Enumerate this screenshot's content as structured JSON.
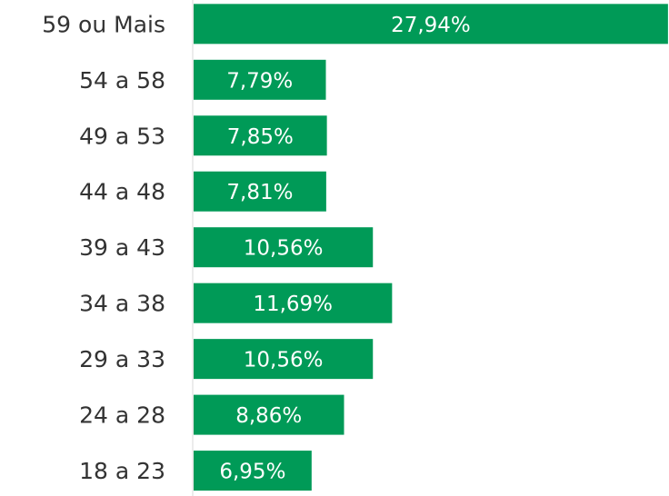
{
  "chart_data": {
    "type": "hbar",
    "categories": [
      "59 ou Mais",
      "54 a 58",
      "49 a 53",
      "44 a 48",
      "39 a 43",
      "34 a 38",
      "29 a 33",
      "24 a 28",
      "18 a 23"
    ],
    "values": [
      27.94,
      7.79,
      7.85,
      7.81,
      10.56,
      11.69,
      10.56,
      8.86,
      6.95
    ],
    "value_labels": [
      "27,94%",
      "7,79%",
      "7,85%",
      "7,81%",
      "10,56%",
      "11,69%",
      "10,56%",
      "8,86%",
      "6,95%"
    ],
    "color": "#009a57",
    "xlim": [
      0,
      28
    ]
  }
}
